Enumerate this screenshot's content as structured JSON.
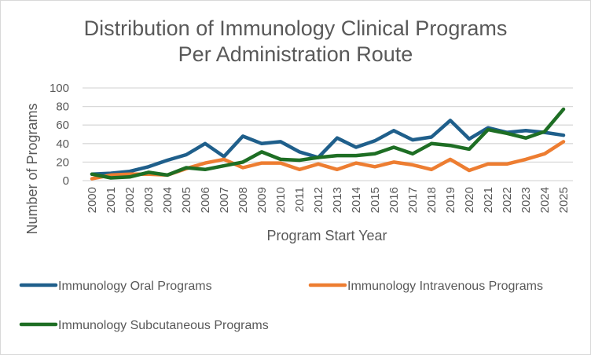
{
  "chart_data": {
    "type": "line",
    "title": "Distribution of Immunology Clinical Programs Per Administration Route",
    "title_lines": [
      "Distribution of Immunology Clinical Programs",
      "Per Administration Route"
    ],
    "xlabel": "Program Start Year",
    "ylabel": "Number of Programs",
    "ylim": [
      0,
      100
    ],
    "yticks": [
      0,
      20,
      40,
      60,
      80,
      100
    ],
    "grid": true,
    "legend_position": "bottom",
    "categories": [
      "2000",
      "2001",
      "2002",
      "2003",
      "2004",
      "2005",
      "2006",
      "2007",
      "2008",
      "2009",
      "2010",
      "2011",
      "2012",
      "2013",
      "2014",
      "2015",
      "2016",
      "2017",
      "2018",
      "2019",
      "2020",
      "2021",
      "2022",
      "2023",
      "2024",
      "2025"
    ],
    "series": [
      {
        "name": "Immunology Oral Programs",
        "color": "#1f5f8b",
        "values": [
          7,
          8,
          10,
          15,
          22,
          28,
          40,
          26,
          48,
          40,
          42,
          31,
          25,
          46,
          36,
          43,
          54,
          44,
          47,
          65,
          45,
          57,
          52,
          54,
          52,
          49
        ]
      },
      {
        "name": "Immunology Intravenous Programs",
        "color": "#ed7d31",
        "values": [
          2,
          6,
          7,
          7,
          6,
          13,
          19,
          23,
          14,
          19,
          19,
          12,
          18,
          12,
          19,
          15,
          20,
          17,
          12,
          23,
          11,
          18,
          18,
          23,
          29,
          42
        ]
      },
      {
        "name": "Immunology Subcutaneous Programs",
        "color": "#1e6e24",
        "values": [
          7,
          3,
          4,
          9,
          6,
          14,
          12,
          16,
          20,
          31,
          23,
          22,
          25,
          27,
          27,
          29,
          36,
          29,
          40,
          38,
          34,
          55,
          51,
          46,
          53,
          77
        ]
      }
    ]
  }
}
